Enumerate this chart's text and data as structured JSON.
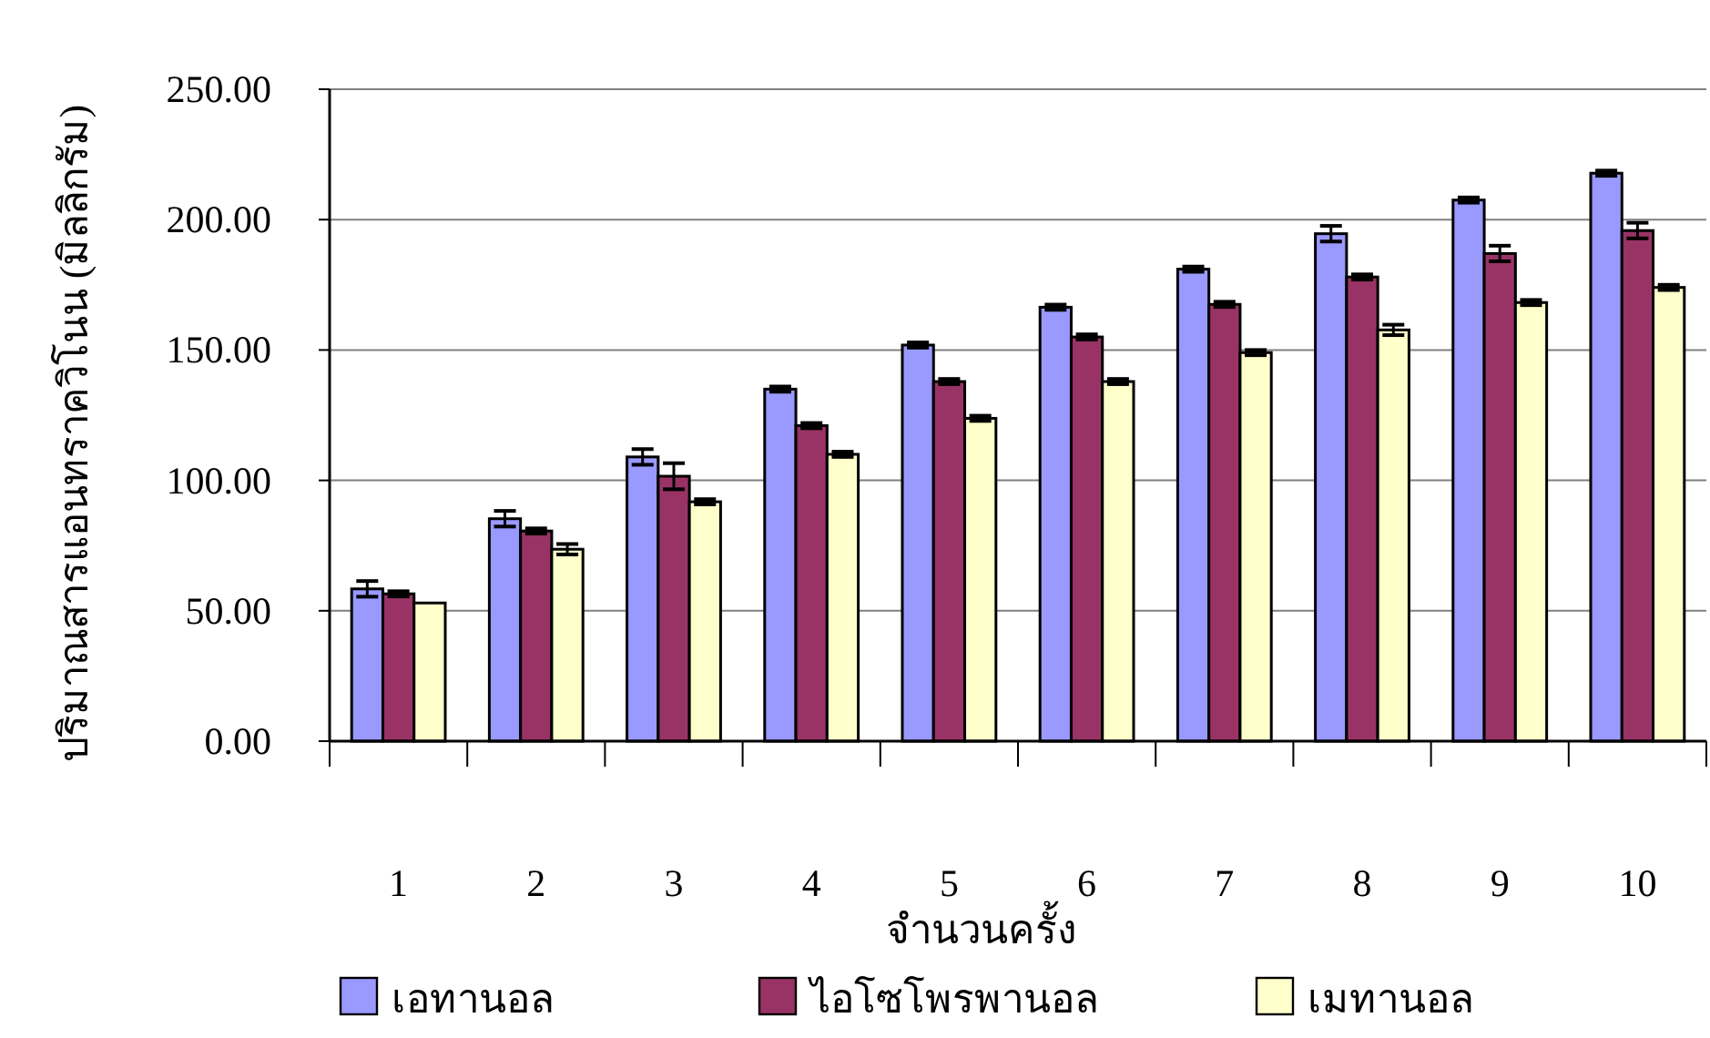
{
  "chart_data": {
    "type": "bar",
    "xlabel": "จำนวนครั้ง",
    "ylabel": "ปริมาณสารแอนทราควิโนน (มิลลิกรัม)",
    "categories": [
      "1",
      "2",
      "3",
      "4",
      "5",
      "6",
      "7",
      "8",
      "9",
      "10"
    ],
    "series": [
      {
        "name": "เอทานอล",
        "color": "#9999ff",
        "values": [
          58.4,
          85.3,
          109,
          135,
          151.9,
          166.4,
          181,
          194.6,
          207.5,
          217.8
        ],
        "errors": [
          3,
          3,
          3,
          1,
          1,
          1,
          1,
          3,
          1,
          1
        ]
      },
      {
        "name": "ไอโซโพรพานอล",
        "color": "#993366",
        "values": [
          56.5,
          80.6,
          101.6,
          121,
          137.9,
          155,
          167.5,
          178,
          187,
          195.8
        ],
        "errors": [
          1,
          1,
          5,
          1,
          1,
          1,
          1,
          1,
          3,
          3
        ]
      },
      {
        "name": "เมทานอล",
        "color": "#ffffcc",
        "values": [
          53,
          73.6,
          91.8,
          110,
          123.8,
          137.9,
          149,
          157.7,
          168.2,
          174
        ],
        "errors": [
          null,
          2,
          1,
          1,
          1,
          1,
          1,
          2,
          1,
          1
        ]
      }
    ],
    "ylim": [
      0,
      250
    ],
    "yticks": [
      {
        "value": 0,
        "label": "0.00"
      },
      {
        "value": 50,
        "label": "50.00"
      },
      {
        "value": 100,
        "label": "100.00"
      },
      {
        "value": 150,
        "label": "150.00"
      },
      {
        "value": 200,
        "label": "200.00"
      },
      {
        "value": 250,
        "label": "250.00"
      }
    ],
    "grid": "y",
    "legend": "bottom"
  }
}
